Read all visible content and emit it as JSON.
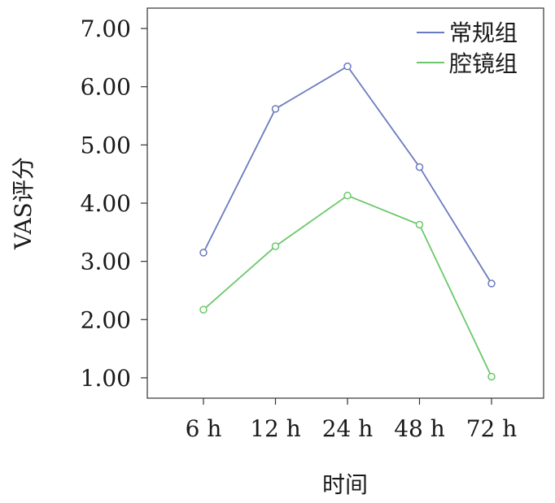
{
  "chart_data": {
    "type": "line",
    "xlabel": "时间",
    "ylabel": "VAS评分",
    "categories": [
      "6 h",
      "12 h",
      "24 h",
      "48 h",
      "72 h"
    ],
    "yticks": [
      "1.00",
      "2.00",
      "3.00",
      "4.00",
      "5.00",
      "6.00",
      "7.00"
    ],
    "ylim": [
      0.65,
      7.35
    ],
    "grid": false,
    "legend_position": "top-right",
    "series": [
      {
        "name": "常规组",
        "color": "#6b7bbf",
        "values": [
          3.15,
          5.62,
          6.35,
          4.62,
          2.62
        ]
      },
      {
        "name": "腔镜组",
        "color": "#6cc76c",
        "values": [
          2.17,
          3.26,
          4.13,
          3.63,
          1.02
        ]
      }
    ]
  }
}
